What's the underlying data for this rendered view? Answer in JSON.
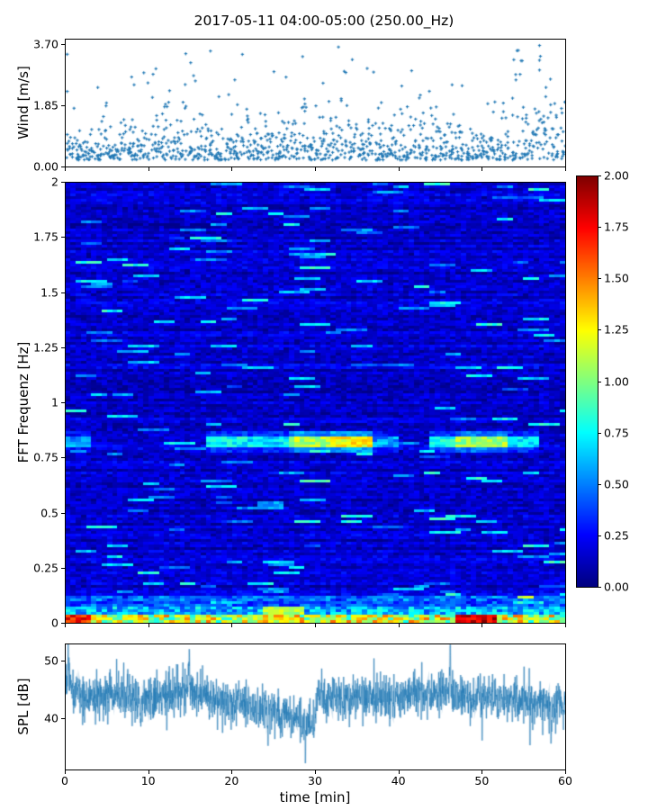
{
  "figure": {
    "title": "2017-05-11 04:00-05:00 (250.00_Hz)",
    "background": "#ffffff",
    "line_color": "#1f77b4",
    "axis_color": "#000000"
  },
  "chart_data": [
    {
      "id": "wind",
      "type": "scatter",
      "ylabel": "Wind [m/s]",
      "marker": "plus",
      "color": "#1f77b4",
      "xlim": [
        0,
        60
      ],
      "ylim": [
        0,
        3.85
      ],
      "ytick_values": [
        0,
        1.85,
        3.7
      ],
      "ytick_labels": [
        "0.00",
        "1.85",
        "3.70"
      ],
      "n_points": 1150,
      "distribution": {
        "base": 0.2,
        "exp_scale": 0.52,
        "burst_prob": 0.25,
        "burst_gain": 1.9,
        "max": 3.7
      },
      "notable_points": [
        [
          56.9,
          3.7
        ],
        [
          56.9,
          3.25
        ],
        [
          56.9,
          2.95
        ],
        [
          36.2,
          3.0
        ],
        [
          25.0,
          2.9
        ],
        [
          20.3,
          2.65
        ],
        [
          8.2,
          2.5
        ],
        [
          30.9,
          2.55
        ],
        [
          46.4,
          2.5
        ]
      ],
      "seed": 7
    },
    {
      "id": "spectrogram",
      "type": "heatmap",
      "ylabel": "FFT Frequenz [Hz]",
      "colormap": "jet",
      "xlim": [
        0,
        60
      ],
      "ylim": [
        0,
        2
      ],
      "clim": [
        0,
        2
      ],
      "grid_cols": 96,
      "grid_rows": 163,
      "ytick_values": [
        0,
        0.25,
        0.5,
        0.75,
        1,
        1.25,
        1.5,
        1.75,
        2
      ],
      "ytick_labels": [
        "0",
        "0.25",
        "0.5",
        "0.75",
        "1",
        "1.25",
        "1.5",
        "1.75",
        "2"
      ],
      "colorbar_tick_values": [
        0,
        0.25,
        0.5,
        0.75,
        1,
        1.25,
        1.5,
        1.75,
        2
      ],
      "colorbar_tick_labels": [
        "0.00",
        "0.25",
        "0.50",
        "0.75",
        "1.00",
        "1.25",
        "1.50",
        "1.75",
        "2.00"
      ],
      "background_model": {
        "row_base": 0.16,
        "row_jitter": 0.14,
        "cell_jitter": 0.2,
        "streak_prob": 0.015,
        "streak_gain": 0.45,
        "dark_prob": 0.05
      },
      "features": {
        "tonal_band": {
          "freq_hz": 0.82,
          "half_width_hz": 0.022,
          "segments": [
            {
              "t": [
                0,
                3
              ],
              "amp": 0.55
            },
            {
              "t": [
                17,
                22
              ],
              "amp": 0.75
            },
            {
              "t": [
                22,
                27
              ],
              "amp": 0.7
            },
            {
              "t": [
                27,
                32
              ],
              "amp": 1.1
            },
            {
              "t": [
                32,
                37
              ],
              "amp": 1.25
            },
            {
              "t": [
                37,
                40
              ],
              "amp": 0.55
            },
            {
              "t": [
                44,
                47
              ],
              "amp": 0.8
            },
            {
              "t": [
                47,
                53
              ],
              "amp": 1.05
            },
            {
              "t": [
                53,
                57
              ],
              "amp": 0.7
            }
          ]
        },
        "surface_band": {
          "freq_below_hz": 0.035,
          "base_amp": [
            0.75,
            1.55
          ],
          "hot_segments": [
            {
              "t": [
                0,
                3
              ],
              "amp": 1.7
            },
            {
              "t": [
                24,
                28
              ],
              "amp": 1.2
            },
            {
              "t": [
                47,
                52
              ],
              "amp": 1.85
            }
          ],
          "green_strip": {
            "t": [
              23.5,
              29
            ],
            "freq_below_hz": 0.07,
            "amp": 1.1
          }
        },
        "extra_tones": [
          {
            "t": [
              23,
              26
            ],
            "freq_hz": 0.53,
            "amp": 0.55
          }
        ]
      },
      "seed": 11
    },
    {
      "id": "spl",
      "type": "line",
      "ylabel": "SPL [dB]",
      "xlabel": "time [min]",
      "color": "#1f77b4",
      "xlim": [
        0,
        60
      ],
      "ylim": [
        31,
        53
      ],
      "ytick_values": [
        40,
        50
      ],
      "ytick_labels": [
        "40",
        "50"
      ],
      "xtick_values": [
        0,
        10,
        20,
        30,
        40,
        50,
        60
      ],
      "xtick_labels": [
        "0",
        "10",
        "20",
        "30",
        "40",
        "50",
        "60"
      ],
      "n_samples": 2600,
      "noise_sd": 1.8,
      "rare_excursion_prob": 0.012,
      "rare_excursion_mag": 4,
      "mean_envelope": [
        [
          0,
          45.8
        ],
        [
          2,
          44.0
        ],
        [
          4,
          43.5
        ],
        [
          6,
          44.0
        ],
        [
          8,
          43.6
        ],
        [
          10,
          43.2
        ],
        [
          12,
          44.0
        ],
        [
          14,
          45.2
        ],
        [
          16,
          44.6
        ],
        [
          18,
          43.2
        ],
        [
          20,
          42.6
        ],
        [
          22,
          42.2
        ],
        [
          24,
          41.2
        ],
        [
          26,
          41.0
        ],
        [
          27,
          40.4
        ],
        [
          28,
          40.0
        ],
        [
          29,
          39.2
        ],
        [
          29.8,
          39.0
        ],
        [
          30.2,
          43.8
        ],
        [
          32,
          44.0
        ],
        [
          34,
          43.6
        ],
        [
          36,
          44.2
        ],
        [
          38,
          43.6
        ],
        [
          40,
          44.0
        ],
        [
          42,
          44.2
        ],
        [
          44,
          44.0
        ],
        [
          46,
          44.8
        ],
        [
          47,
          44.2
        ],
        [
          48,
          43.6
        ],
        [
          50,
          43.8
        ],
        [
          52,
          43.2
        ],
        [
          54,
          43.4
        ],
        [
          56,
          43.0
        ],
        [
          58,
          42.6
        ],
        [
          60,
          42.4
        ]
      ],
      "spikes": [
        {
          "t": 0.3,
          "dv": 6.5
        },
        {
          "t": 46.2,
          "dv": 7.0
        },
        {
          "t": 14.8,
          "dv": 4.5
        },
        {
          "t": 9.0,
          "dv": -5.0
        },
        {
          "t": 28.8,
          "dv": -5.5
        },
        {
          "t": 24.3,
          "dv": -5.0
        },
        {
          "t": 58.3,
          "dv": -7.0
        }
      ],
      "seed": 23
    }
  ]
}
